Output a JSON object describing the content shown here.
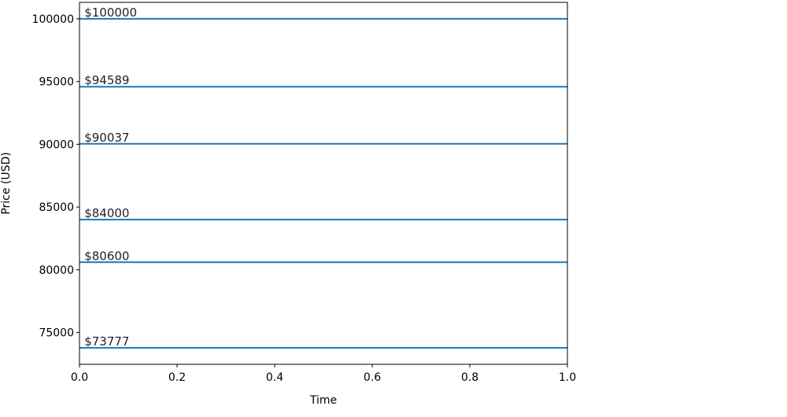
{
  "chart_data": {
    "type": "line",
    "title": "",
    "xlabel": "Time",
    "ylabel": "Price (USD)",
    "xlim": [
      0.0,
      1.0
    ],
    "ylim": [
      72466,
      101311
    ],
    "xticks": [
      "0.0",
      "0.2",
      "0.4",
      "0.6",
      "0.8",
      "1.0"
    ],
    "yticks": [
      "75000",
      "80000",
      "85000",
      "90000",
      "95000",
      "100000"
    ],
    "grid": false,
    "line_color": "#1f77b4",
    "series": [
      {
        "label": "$100000",
        "y": 100000
      },
      {
        "label": "$94589",
        "y": 94589
      },
      {
        "label": "$90037",
        "y": 90037
      },
      {
        "label": "$84000",
        "y": 84000
      },
      {
        "label": "$80600",
        "y": 80600
      },
      {
        "label": "$73777",
        "y": 73777
      }
    ]
  }
}
